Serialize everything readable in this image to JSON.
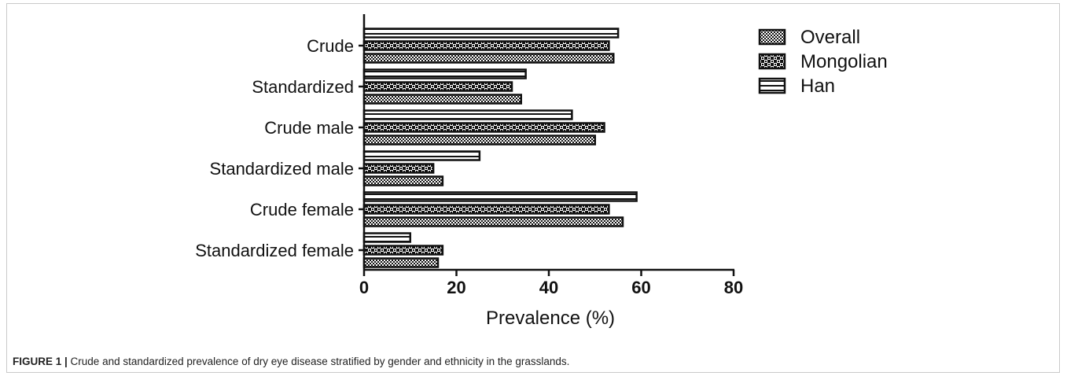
{
  "chart_data": {
    "type": "bar",
    "orientation": "horizontal",
    "categories": [
      "Crude",
      "Standardized",
      "Crude male",
      "Standardized male",
      "Crude female",
      "Standardized female"
    ],
    "series": [
      {
        "name": "Han",
        "values": [
          55,
          35,
          45,
          25,
          59,
          10
        ]
      },
      {
        "name": "Mongolian",
        "values": [
          53,
          32,
          52,
          15,
          53,
          17
        ]
      },
      {
        "name": "Overall",
        "values": [
          54,
          34,
          50,
          17,
          56,
          16
        ]
      }
    ],
    "legend_order": [
      "Overall",
      "Mongolian",
      "Han"
    ],
    "legend_position": "top-right",
    "xlabel": "Prevalence (%)",
    "ylabel": "",
    "xlim": [
      0,
      80
    ],
    "xticks": [
      0,
      20,
      40,
      60,
      80
    ],
    "grid": false
  },
  "caption": {
    "label": "FIGURE 1 |",
    "text": " Crude and standardized prevalence of dry eye disease stratified by gender and ethnicity in the grasslands."
  }
}
